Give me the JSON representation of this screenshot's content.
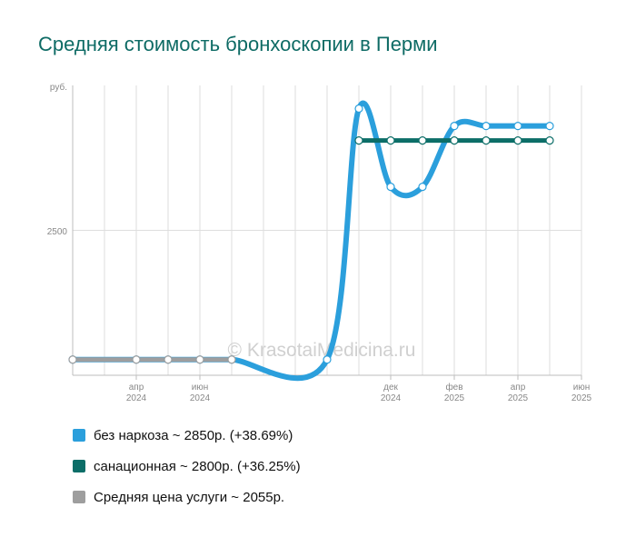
{
  "chart_data": {
    "type": "line",
    "title": "Средняя стоимость бронхоскопии в Перми",
    "y_unit_label": "руб.",
    "y_tick_labels": [
      "2500"
    ],
    "ylim": [
      0,
      5000
    ],
    "x_ticks": [
      {
        "month": "апр",
        "year": "2024"
      },
      {
        "month": "июн",
        "year": "2024"
      },
      {
        "month": "дек",
        "year": "2024"
      },
      {
        "month": "фев",
        "year": "2025"
      },
      {
        "month": "апр",
        "year": "2025"
      },
      {
        "month": "июн",
        "year": "2025"
      }
    ],
    "grid": true,
    "watermark": "© KrasotaiMedicina.ru",
    "series": [
      {
        "name": "без наркоза",
        "legend": "без наркоза ~ 2850р. (+38.69%)",
        "color": "#2b9fdc",
        "points": [
          {
            "x": "2024-02",
            "y": 270
          },
          {
            "x": "2024-04",
            "y": 270
          },
          {
            "x": "2024-05",
            "y": 270
          },
          {
            "x": "2024-06",
            "y": 270
          },
          {
            "x": "2024-07",
            "y": 270
          },
          {
            "x": "2024-10",
            "y": 270
          },
          {
            "x": "2024-11",
            "y": 4600
          },
          {
            "x": "2024-12",
            "y": 3250
          },
          {
            "x": "2025-01",
            "y": 3250
          },
          {
            "x": "2025-02",
            "y": 4300
          },
          {
            "x": "2025-03",
            "y": 4300
          },
          {
            "x": "2025-04",
            "y": 4300
          },
          {
            "x": "2025-05",
            "y": 4300
          }
        ]
      },
      {
        "name": "санационная",
        "legend": "санационная ~ 2800р. (+36.25%)",
        "color": "#0c6e68",
        "points": [
          {
            "x": "2024-11",
            "y": 4050
          },
          {
            "x": "2024-12",
            "y": 4050
          },
          {
            "x": "2025-01",
            "y": 4050
          },
          {
            "x": "2025-02",
            "y": 4050
          },
          {
            "x": "2025-03",
            "y": 4050
          },
          {
            "x": "2025-04",
            "y": 4050
          },
          {
            "x": "2025-05",
            "y": 4050
          }
        ]
      },
      {
        "name": "Средняя цена услуги",
        "legend": "Средняя цена услуги ~ 2055р.",
        "color": "#9e9e9e",
        "points": [
          {
            "x": "2024-02",
            "y": 270
          },
          {
            "x": "2024-04",
            "y": 270
          },
          {
            "x": "2024-05",
            "y": 270
          },
          {
            "x": "2024-06",
            "y": 270
          },
          {
            "x": "2024-07",
            "y": 270
          }
        ]
      }
    ]
  }
}
